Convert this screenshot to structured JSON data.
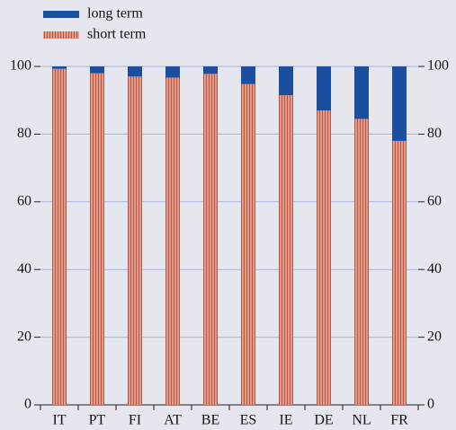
{
  "chart_data": {
    "type": "stacked-bar",
    "categories": [
      "IT",
      "PT",
      "FI",
      "AT",
      "BE",
      "ES",
      "IE",
      "DE",
      "NL",
      "FR"
    ],
    "series": [
      {
        "name": "short term",
        "color": "#e39b86",
        "values": [
          99.3,
          98,
          97,
          96.7,
          97.8,
          94.8,
          91.5,
          87,
          84.5,
          78
        ]
      },
      {
        "name": "long term",
        "color": "#1a4fa0",
        "values": [
          0.7,
          2,
          3,
          3.3,
          2.2,
          5.2,
          8.5,
          13,
          15.5,
          22
        ]
      }
    ],
    "ylim": [
      0,
      100
    ],
    "yticks": [
      0,
      20,
      40,
      60,
      80,
      100
    ],
    "grid": true
  }
}
